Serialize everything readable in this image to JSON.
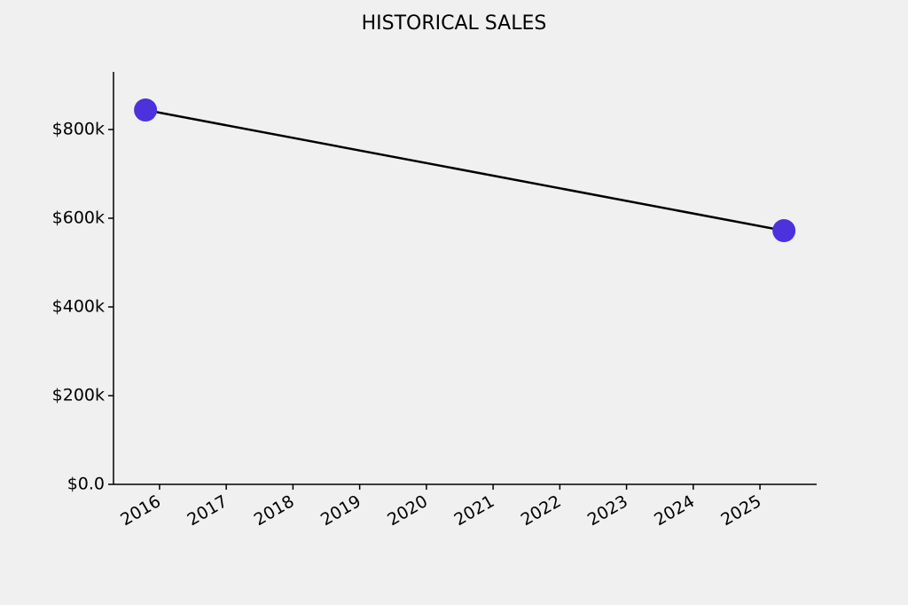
{
  "chart_data": {
    "type": "line",
    "title": "HISTORICAL SALES",
    "x": [
      2015.79,
      2025.36
    ],
    "values": [
      844000,
      572000
    ],
    "color": "#000000",
    "marker_color": "#4b32dd",
    "xlim": [
      2015.31,
      2025.85
    ],
    "xticks": [
      2016,
      2017,
      2018,
      2019,
      2020,
      2021,
      2022,
      2023,
      2024,
      2025
    ],
    "ylim": [
      0,
      930000
    ],
    "yticks": [
      {
        "value": 0,
        "label": "$0.0"
      },
      {
        "value": 200000,
        "label": "$200k"
      },
      {
        "value": 400000,
        "label": "$400k"
      },
      {
        "value": 600000,
        "label": "$600k"
      },
      {
        "value": 800000,
        "label": "$800k"
      }
    ],
    "grid": false
  }
}
